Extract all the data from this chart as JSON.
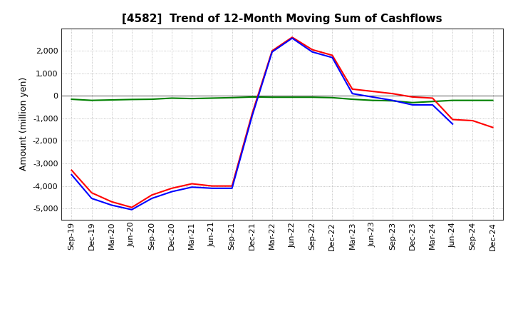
{
  "title": "[4582]  Trend of 12-Month Moving Sum of Cashflows",
  "ylabel": "Amount (million yen)",
  "xlabels": [
    "Sep-19",
    "Dec-19",
    "Mar-20",
    "Jun-20",
    "Sep-20",
    "Dec-20",
    "Mar-21",
    "Jun-21",
    "Sep-21",
    "Dec-21",
    "Mar-22",
    "Jun-22",
    "Sep-22",
    "Dec-22",
    "Mar-23",
    "Jun-23",
    "Sep-23",
    "Dec-23",
    "Mar-24",
    "Jun-24",
    "Sep-24",
    "Dec-24"
  ],
  "operating_cashflow": [
    -3300,
    -4300,
    -4700,
    -4950,
    -4400,
    -4100,
    -3900,
    -4000,
    -4000,
    -800,
    2000,
    2600,
    2050,
    1800,
    300,
    200,
    100,
    -50,
    -100,
    -1050,
    -1100,
    -1400
  ],
  "investing_cashflow": [
    -150,
    -200,
    -180,
    -160,
    -150,
    -100,
    -120,
    -100,
    -80,
    -50,
    -60,
    -60,
    -60,
    -80,
    -150,
    -200,
    -220,
    -300,
    -250,
    -200,
    -200,
    -200
  ],
  "free_cashflow": [
    -3500,
    -4550,
    -4850,
    -5050,
    -4550,
    -4250,
    -4050,
    -4100,
    -4100,
    -900,
    1950,
    2560,
    1950,
    1700,
    100,
    -50,
    -200,
    -400,
    -400,
    -1250,
    null,
    null
  ],
  "ylim": [
    -5500,
    3000
  ],
  "yticks": [
    -5000,
    -4000,
    -3000,
    -2000,
    -1000,
    0,
    1000,
    2000
  ],
  "colors": {
    "operating": "#ff0000",
    "investing": "#008000",
    "free": "#0000ff"
  },
  "background_color": "#ffffff",
  "grid_color": "#b0b0b0",
  "title_fontsize": 11,
  "ylabel_fontsize": 9,
  "tick_fontsize": 8
}
